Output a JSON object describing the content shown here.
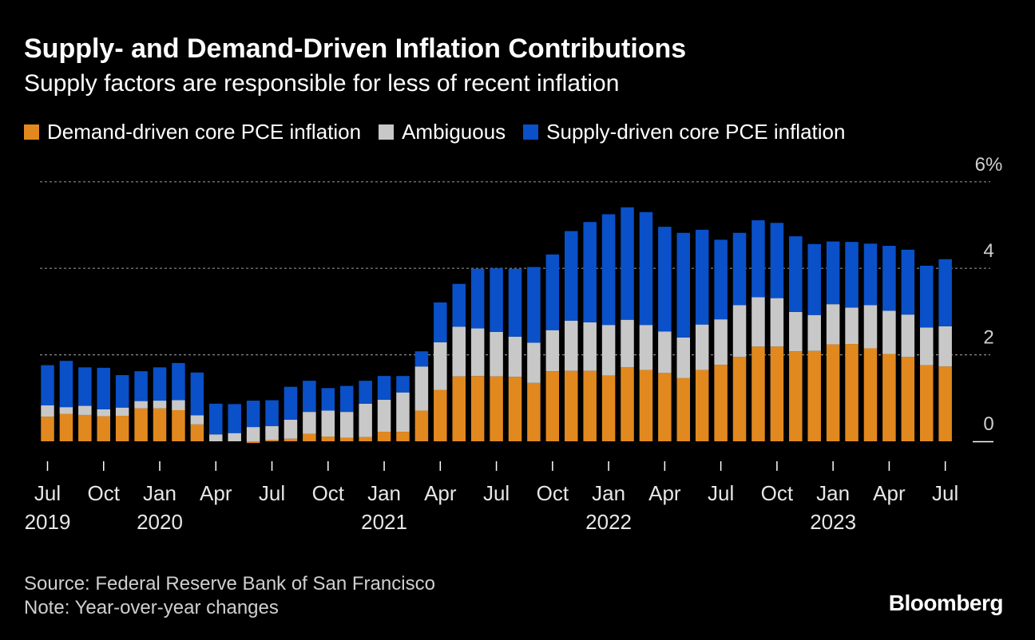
{
  "title": "Supply- and Demand-Driven Inflation Contributions",
  "subtitle": "Supply factors are responsible for less of recent inflation",
  "legend": [
    {
      "label": "Demand-driven core PCE inflation",
      "color": "#e1891f"
    },
    {
      "label": "Ambiguous",
      "color": "#c8c8c8"
    },
    {
      "label": "Supply-driven core PCE inflation",
      "color": "#0a50c8"
    }
  ],
  "footer": {
    "source": "Source: Federal Reserve Bank of San Francisco",
    "note": "Note: Year-over-year changes",
    "brand": "Bloomberg"
  },
  "chart_data": {
    "type": "bar",
    "stacked": true,
    "x": [
      "2019-07",
      "2019-08",
      "2019-09",
      "2019-10",
      "2019-11",
      "2019-12",
      "2020-01",
      "2020-02",
      "2020-03",
      "2020-04",
      "2020-05",
      "2020-06",
      "2020-07",
      "2020-08",
      "2020-09",
      "2020-10",
      "2020-11",
      "2020-12",
      "2021-01",
      "2021-02",
      "2021-03",
      "2021-04",
      "2021-05",
      "2021-06",
      "2021-07",
      "2021-08",
      "2021-09",
      "2021-10",
      "2021-11",
      "2021-12",
      "2022-01",
      "2022-02",
      "2022-03",
      "2022-04",
      "2022-05",
      "2022-06",
      "2022-07",
      "2022-08",
      "2022-09",
      "2022-10",
      "2022-11",
      "2022-12",
      "2023-01",
      "2023-02",
      "2023-03",
      "2023-04",
      "2023-05",
      "2023-06",
      "2023-07"
    ],
    "series": [
      {
        "name": "Demand-driven core PCE inflation",
        "color": "#e1891f",
        "values": [
          0.57,
          0.63,
          0.61,
          0.58,
          0.59,
          0.76,
          0.76,
          0.72,
          0.39,
          0.0,
          0.0,
          -0.04,
          0.03,
          0.06,
          0.17,
          0.11,
          0.08,
          0.1,
          0.22,
          0.22,
          0.71,
          1.19,
          1.5,
          1.51,
          1.5,
          1.49,
          1.35,
          1.62,
          1.63,
          1.63,
          1.52,
          1.71,
          1.65,
          1.58,
          1.46,
          1.65,
          1.77,
          1.95,
          2.19,
          2.19,
          2.08,
          2.09,
          2.24,
          2.25,
          2.15,
          2.02,
          1.95,
          1.76,
          1.73
        ]
      },
      {
        "name": "Ambiguous",
        "color": "#c8c8c8",
        "values": [
          0.26,
          0.16,
          0.21,
          0.16,
          0.19,
          0.17,
          0.18,
          0.23,
          0.21,
          0.16,
          0.19,
          0.33,
          0.32,
          0.44,
          0.51,
          0.6,
          0.6,
          0.77,
          0.74,
          0.91,
          1.02,
          1.1,
          1.15,
          1.1,
          1.03,
          0.93,
          0.93,
          0.95,
          1.16,
          1.12,
          1.17,
          1.1,
          1.04,
          0.96,
          0.94,
          1.05,
          1.05,
          1.2,
          1.14,
          1.12,
          0.91,
          0.83,
          0.93,
          0.84,
          1.0,
          1.0,
          0.98,
          0.87,
          0.93
        ]
      },
      {
        "name": "Supply-driven core PCE inflation",
        "color": "#0a50c8",
        "values": [
          0.93,
          1.07,
          0.89,
          0.96,
          0.75,
          0.69,
          0.77,
          0.86,
          0.99,
          0.71,
          0.67,
          0.61,
          0.6,
          0.76,
          0.72,
          0.52,
          0.6,
          0.53,
          0.55,
          0.38,
          0.35,
          0.92,
          0.99,
          1.38,
          1.47,
          1.57,
          1.75,
          1.75,
          2.07,
          2.32,
          2.56,
          2.6,
          2.61,
          2.42,
          2.42,
          2.19,
          1.84,
          1.67,
          1.78,
          1.74,
          1.75,
          1.64,
          1.45,
          1.52,
          1.42,
          1.5,
          1.5,
          1.43,
          1.55
        ]
      }
    ],
    "x_ticks": [
      {
        "month": "Jul",
        "year": "2019"
      },
      {
        "month": "Oct",
        "year": ""
      },
      {
        "month": "Jan",
        "year": "2020"
      },
      {
        "month": "Apr",
        "year": ""
      },
      {
        "month": "Jul",
        "year": ""
      },
      {
        "month": "Oct",
        "year": ""
      },
      {
        "month": "Jan",
        "year": "2021"
      },
      {
        "month": "Apr",
        "year": ""
      },
      {
        "month": "Jul",
        "year": ""
      },
      {
        "month": "Oct",
        "year": ""
      },
      {
        "month": "Jan",
        "year": "2022"
      },
      {
        "month": "Apr",
        "year": ""
      },
      {
        "month": "Jul",
        "year": ""
      },
      {
        "month": "Oct",
        "year": ""
      },
      {
        "month": "Jan",
        "year": "2023"
      },
      {
        "month": "Apr",
        "year": ""
      },
      {
        "month": "Jul",
        "year": ""
      }
    ],
    "y_ticks": [
      {
        "value": 0,
        "label": "0"
      },
      {
        "value": 2,
        "label": "2"
      },
      {
        "value": 4,
        "label": "4"
      },
      {
        "value": 6,
        "label": "6%"
      }
    ],
    "ylim": [
      0,
      6
    ],
    "grid": true,
    "legend_position": "top-left"
  }
}
